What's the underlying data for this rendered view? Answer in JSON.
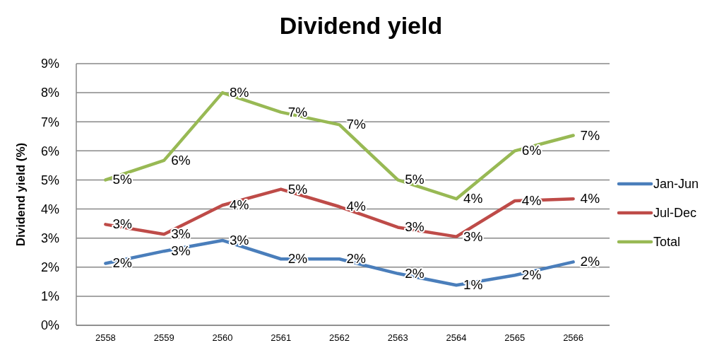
{
  "chart_data": {
    "type": "line",
    "title": "Dividend yield",
    "ylabel": "Dividend yield (%)",
    "categories": [
      "2558",
      "2559",
      "2560",
      "2561",
      "2562",
      "2563",
      "2564",
      "2565",
      "2566"
    ],
    "ylim": [
      0,
      9
    ],
    "yticks": [
      {
        "value": 0,
        "label": "0%"
      },
      {
        "value": 1,
        "label": "1%"
      },
      {
        "value": 2,
        "label": "2%"
      },
      {
        "value": 3,
        "label": "3%"
      },
      {
        "value": 4,
        "label": "4%"
      },
      {
        "value": 5,
        "label": "5%"
      },
      {
        "value": 6,
        "label": "6%"
      },
      {
        "value": 7,
        "label": "7%"
      },
      {
        "value": 8,
        "label": "8%"
      },
      {
        "value": 9,
        "label": "9%"
      }
    ],
    "grid": "y",
    "legend": "right",
    "marker": "none",
    "line_style": "solid",
    "series": [
      {
        "name": "Jan-Jun",
        "color": "#4a7ebb",
        "values": [
          2.13,
          2.55,
          2.92,
          2.28,
          2.28,
          1.78,
          1.38,
          1.72,
          2.18
        ],
        "value_labels": [
          "2%",
          "3%",
          "3%",
          "2%",
          "2%",
          "2%",
          "1%",
          "2%",
          "2%"
        ]
      },
      {
        "name": "Jul-Dec",
        "color": "#be4b48",
        "values": [
          3.47,
          3.13,
          4.13,
          4.68,
          4.08,
          3.37,
          3.05,
          4.28,
          4.35
        ],
        "value_labels": [
          "3%",
          "3%",
          "4%",
          "5%",
          "4%",
          "3%",
          "3%",
          "4%",
          "4%"
        ]
      },
      {
        "name": "Total",
        "color": "#98b954",
        "values": [
          5.0,
          5.67,
          8.0,
          7.33,
          6.9,
          5.0,
          4.35,
          6.0,
          6.53
        ],
        "value_labels": [
          "5%",
          "6%",
          "8%",
          "7%",
          "7%",
          "5%",
          "4%",
          "6%",
          "7%"
        ]
      }
    ]
  }
}
